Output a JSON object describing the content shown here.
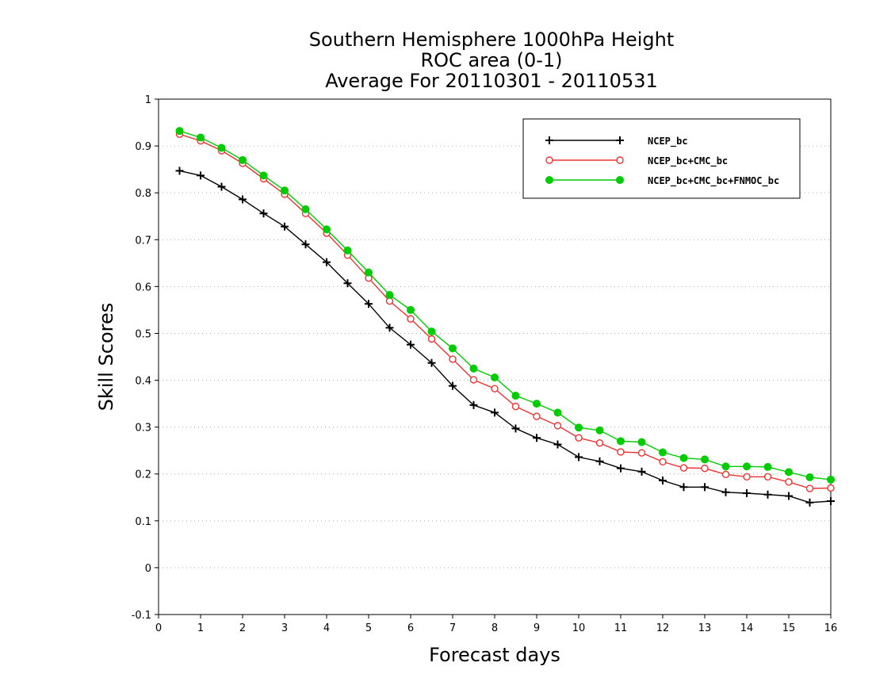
{
  "chart_data": {
    "type": "line",
    "title": [
      "Southern Hemisphere 1000hPa Height",
      "ROC area (0-1)",
      "Average For 20110301 - 20110531"
    ],
    "xlabel": "Forecast days",
    "ylabel": "Skill Scores",
    "xlim": [
      0,
      16
    ],
    "ylim": [
      -0.1,
      1
    ],
    "xticks": [
      0,
      1,
      2,
      3,
      4,
      5,
      6,
      7,
      8,
      9,
      10,
      11,
      12,
      13,
      14,
      15,
      16
    ],
    "xtick_labels": [
      "0",
      "1",
      "2",
      "3",
      "4",
      "5",
      "6",
      "7",
      "8",
      "9",
      "10",
      "11",
      "12",
      "13",
      "14",
      "15",
      "16"
    ],
    "yticks": [
      -0.1,
      0,
      0.1,
      0.2,
      0.3,
      0.4,
      0.5,
      0.6,
      0.7,
      0.8,
      0.9,
      1
    ],
    "ytick_labels": [
      "-0.1",
      "0",
      "0.1",
      "0.2",
      "0.3",
      "0.4",
      "0.5",
      "0.6",
      "0.7",
      "0.8",
      "0.9",
      "1"
    ],
    "grid": "horizontal dotted",
    "legend_position": "top-right",
    "x": [
      0.5,
      1,
      1.5,
      2,
      2.5,
      3,
      3.5,
      4,
      4.5,
      5,
      5.5,
      6,
      6.5,
      7,
      7.5,
      8,
      8.5,
      9,
      9.5,
      10,
      10.5,
      11,
      11.5,
      12,
      12.5,
      13,
      13.5,
      14,
      14.5,
      15,
      15.5,
      16
    ],
    "series": [
      {
        "name": "NCEP_bc",
        "color": "#000000",
        "marker": "plus",
        "values": [
          0.847,
          0.837,
          0.813,
          0.786,
          0.756,
          0.728,
          0.69,
          0.652,
          0.607,
          0.563,
          0.512,
          0.476,
          0.437,
          0.388,
          0.347,
          0.331,
          0.297,
          0.277,
          0.263,
          0.236,
          0.227,
          0.212,
          0.205,
          0.186,
          0.172,
          0.172,
          0.161,
          0.159,
          0.156,
          0.153,
          0.139,
          0.142
        ]
      },
      {
        "name": "NCEP_bc+CMC_bc",
        "color": "#ee3333",
        "marker": "open-circle",
        "values": [
          0.925,
          0.911,
          0.89,
          0.863,
          0.83,
          0.797,
          0.756,
          0.714,
          0.667,
          0.618,
          0.569,
          0.531,
          0.488,
          0.445,
          0.401,
          0.382,
          0.344,
          0.323,
          0.303,
          0.277,
          0.266,
          0.247,
          0.245,
          0.226,
          0.213,
          0.212,
          0.199,
          0.194,
          0.194,
          0.183,
          0.169,
          0.17
        ]
      },
      {
        "name": "NCEP_bc+CMC_bc+FNMOC_bc",
        "color": "#00cc00",
        "marker": "filled-circle",
        "values": [
          0.932,
          0.918,
          0.896,
          0.87,
          0.837,
          0.805,
          0.765,
          0.722,
          0.677,
          0.63,
          0.582,
          0.55,
          0.504,
          0.468,
          0.425,
          0.406,
          0.367,
          0.35,
          0.331,
          0.299,
          0.293,
          0.27,
          0.268,
          0.246,
          0.234,
          0.231,
          0.216,
          0.216,
          0.215,
          0.204,
          0.193,
          0.188
        ]
      }
    ]
  }
}
